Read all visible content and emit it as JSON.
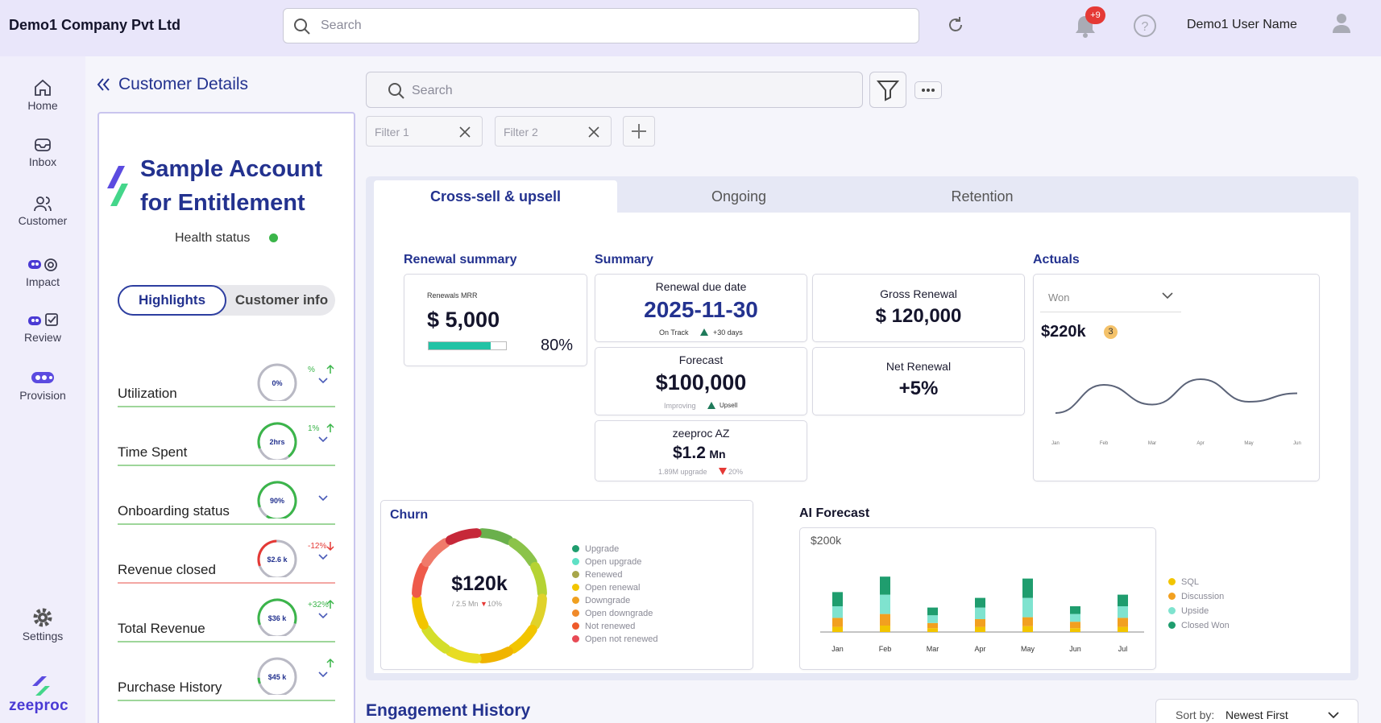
{
  "header": {
    "company": "Demo1 Company Pvt Ltd",
    "search_placeholder": "Search",
    "notif_badge": "+9",
    "user_name": "Demo1 User Name"
  },
  "nav": {
    "items": [
      {
        "label": "Home",
        "icon": "home-icon"
      },
      {
        "label": "Inbox",
        "icon": "inbox-icon"
      },
      {
        "label": "Customer",
        "icon": "users-icon"
      },
      {
        "label": "Impact",
        "icon": "impact-icon"
      },
      {
        "label": "Review",
        "icon": "review-icon"
      },
      {
        "label": "Provision",
        "icon": "provision-icon"
      }
    ],
    "settings": "Settings",
    "logo": "zeeproc"
  },
  "panel": {
    "title": "Customer Details",
    "account_name_line1": "Sample Account",
    "account_name_line2": "for Entitlement",
    "health_label": "Health status",
    "health_color": "#3bb54a",
    "tabs": [
      "Highlights",
      "Customer info"
    ],
    "metrics": [
      {
        "label": "Utilization",
        "value": "0%",
        "change": "%",
        "trend": "up",
        "progress": 0
      },
      {
        "label": "Time Spent",
        "value": "2hrs",
        "change": "1%",
        "trend": "up",
        "progress": 0.7
      },
      {
        "label": "Onboarding status",
        "value": "90%",
        "change": "",
        "trend": "down",
        "progress": 0.9
      },
      {
        "label": "Revenue closed",
        "value": "$2.6 k",
        "change": "-12%",
        "trend": "down",
        "progress": 0.3
      },
      {
        "label": "Total Revenue",
        "value": "$36 k",
        "change": "+32%",
        "trend": "up",
        "progress": 0.6
      },
      {
        "label": "Purchase History",
        "value": "$45 k",
        "change": "",
        "trend": "up",
        "progress": 0.05
      }
    ]
  },
  "main": {
    "search_placeholder": "Search",
    "filters": [
      "Filter 1",
      "Filter 2"
    ],
    "tabs": [
      "Cross-sell & upsell",
      "Ongoing",
      "Retention"
    ],
    "renewal_summary": {
      "title": "Renewal summary",
      "label": "Renewals MRR",
      "value": "$ 5,000",
      "percent": "80%",
      "progress": 0.8
    },
    "summary": {
      "title": "Summary",
      "renewal_due_label": "Renewal due date",
      "renewal_due_value": "2025-11-30",
      "renewal_due_status": "On Track",
      "renewal_due_delta": "+30 days",
      "gross_label": "Gross Renewal",
      "gross_value": "$ 120,000",
      "forecast_label": "Forecast",
      "forecast_value": "$100,000",
      "forecast_status": "Improving",
      "forecast_delta": "Upsell",
      "net_label": "Net Renewal",
      "net_value": "+5%",
      "az_label": "zeeproc AZ",
      "az_value": "$1.2",
      "az_unit": "Mn",
      "az_sub": "1.89M upgrade",
      "az_delta": "20%"
    },
    "actuals": {
      "title": "Actuals",
      "select": "Won",
      "value": "$220k",
      "badge": "3"
    },
    "churn": {
      "title": "Churn",
      "value": "$120k",
      "sub": "/ 2.5 Mn",
      "delta": "10%",
      "legend": [
        {
          "label": "Upgrade",
          "color": "#1f9d6e"
        },
        {
          "label": "Open upgrade",
          "color": "#5fe0c5"
        },
        {
          "label": "Renewed",
          "color": "#a7a64a"
        },
        {
          "label": "Open renewal",
          "color": "#f2c500"
        },
        {
          "label": "Downgrade",
          "color": "#f0a020"
        },
        {
          "label": "Open downgrade",
          "color": "#f08a2a"
        },
        {
          "label": "Not renewed",
          "color": "#ee5a2a"
        },
        {
          "label": "Open not renewed",
          "color": "#e84a55"
        }
      ]
    },
    "ai_forecast": {
      "title": "AI Forecast",
      "legend": [
        {
          "label": "SQL",
          "color": "#f2c500"
        },
        {
          "label": "Discussion",
          "color": "#f2a020"
        },
        {
          "label": "Upside",
          "color": "#7fe3cf"
        },
        {
          "label": "Closed Won",
          "color": "#1f9d6e"
        }
      ]
    },
    "engagement_title": "Engagement History",
    "sort_label": "Sort by:",
    "sort_value": "Newest First"
  },
  "chart_data": [
    {
      "type": "line",
      "name": "actuals",
      "categories": [
        "Jan",
        "Feb",
        "Mar",
        "Apr",
        "May",
        "Jun"
      ],
      "values": [
        10,
        60,
        25,
        70,
        30,
        45
      ],
      "ylim": [
        0,
        100
      ],
      "grid": false
    },
    {
      "type": "bar",
      "name": "ai_forecast",
      "title": "",
      "ylabel": "$200k",
      "categories": [
        "Jan",
        "Feb",
        "Mar",
        "Apr",
        "May",
        "Jun",
        "Jul"
      ],
      "series": [
        {
          "name": "SQL",
          "values": [
            8,
            10,
            6,
            8,
            9,
            6,
            8
          ]
        },
        {
          "name": "Discussion",
          "values": [
            14,
            18,
            8,
            12,
            14,
            10,
            14
          ]
        },
        {
          "name": "Upside",
          "values": [
            18,
            30,
            12,
            18,
            30,
            12,
            18
          ]
        },
        {
          "name": "Closed Won",
          "values": [
            22,
            28,
            12,
            15,
            30,
            12,
            18
          ]
        }
      ],
      "ylim": [
        0,
        200
      ]
    }
  ]
}
